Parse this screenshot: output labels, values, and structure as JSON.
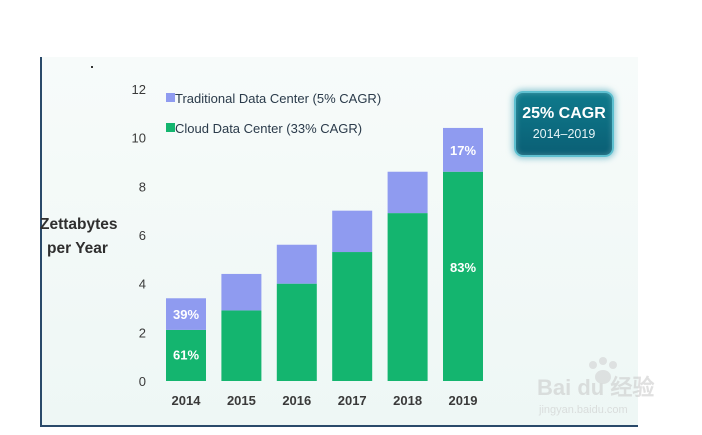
{
  "chart_data": {
    "type": "bar",
    "stacked": true,
    "categories": [
      "2014",
      "2015",
      "2016",
      "2017",
      "2018",
      "2019"
    ],
    "series": [
      {
        "name": "Cloud Data Center (33% CAGR)",
        "color": "#14b56f",
        "values": [
          2.1,
          2.9,
          4.0,
          5.3,
          6.9,
          8.6
        ]
      },
      {
        "name": "Traditional Data Center (5% CAGR)",
        "color": "#8f9bf0",
        "values": [
          1.3,
          1.5,
          1.6,
          1.7,
          1.7,
          1.8
        ]
      }
    ],
    "data_labels": [
      {
        "category": "2014",
        "series": "Cloud Data Center (33% CAGR)",
        "text": "61%"
      },
      {
        "category": "2014",
        "series": "Traditional Data Center (5% CAGR)",
        "text": "39%"
      },
      {
        "category": "2019",
        "series": "Cloud Data Center (33% CAGR)",
        "text": "83%"
      },
      {
        "category": "2019",
        "series": "Traditional Data Center (5% CAGR)",
        "text": "17%"
      }
    ],
    "ylabel_line1": "Zettabytes",
    "ylabel_line2": "per Year",
    "ylim": [
      0,
      12
    ],
    "yticks": [
      0,
      2,
      4,
      6,
      8,
      10,
      12
    ],
    "legend_position": "top-left",
    "grid": false
  },
  "badge": {
    "title": "25% CAGR",
    "subtitle": "2014–2019"
  },
  "watermark": {
    "text": "Bai du 经验",
    "url": "jingyan.baidu.com"
  }
}
